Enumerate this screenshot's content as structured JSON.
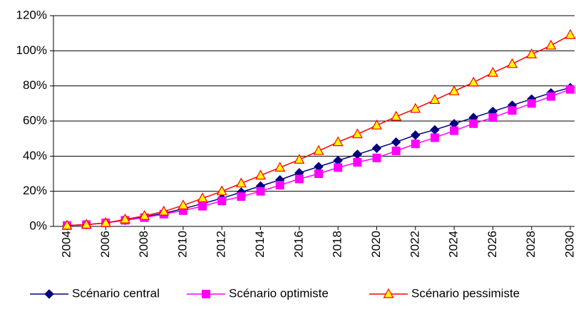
{
  "chart_data": {
    "type": "line",
    "x": [
      2004,
      2005,
      2006,
      2007,
      2008,
      2009,
      2010,
      2011,
      2012,
      2013,
      2014,
      2015,
      2016,
      2017,
      2018,
      2019,
      2020,
      2021,
      2022,
      2023,
      2024,
      2025,
      2026,
      2027,
      2028,
      2029,
      2030
    ],
    "xlim": [
      2004,
      2030
    ],
    "xticks": [
      2004,
      2006,
      2008,
      2010,
      2012,
      2014,
      2016,
      2018,
      2020,
      2022,
      2024,
      2026,
      2028,
      2030
    ],
    "ylim": [
      0,
      120
    ],
    "yticks": [
      {
        "value": 0,
        "label": "0%"
      },
      {
        "value": 20,
        "label": "20%"
      },
      {
        "value": 40,
        "label": "40%"
      },
      {
        "value": 60,
        "label": "60%"
      },
      {
        "value": 80,
        "label": "80%"
      },
      {
        "value": 100,
        "label": "100%"
      },
      {
        "value": 120,
        "label": "120%"
      }
    ],
    "grid": true,
    "legend": "bottom",
    "series": [
      {
        "name": "Scénario central",
        "color": "#000080",
        "marker": "diamond",
        "marker_fill": "#000080",
        "values": [
          0.5,
          1,
          2,
          3.5,
          5.5,
          7.5,
          10,
          13,
          16,
          19.5,
          23,
          26.5,
          30.5,
          34,
          37.5,
          41,
          44.5,
          48,
          52,
          55,
          58.5,
          62,
          65.5,
          69,
          72.5,
          76,
          79
        ]
      },
      {
        "name": "Scénario optimiste",
        "color": "#ff00ff",
        "marker": "square",
        "marker_fill": "#ff00ff",
        "values": [
          0.5,
          1,
          2,
          3.5,
          5,
          7,
          9,
          11.5,
          14.5,
          17,
          20,
          23.5,
          27,
          30,
          33.5,
          36.5,
          39,
          43,
          47,
          50.5,
          54.5,
          58.5,
          62,
          66,
          70,
          74,
          78
        ]
      },
      {
        "name": "Scénario pessimiste",
        "color": "#ff0000",
        "marker": "triangle",
        "marker_fill": "#ffff00",
        "values": [
          0.5,
          1,
          2,
          4,
          6,
          8.5,
          12,
          16,
          20,
          24.5,
          29,
          33.5,
          38,
          43,
          48,
          52.5,
          57.5,
          62.5,
          67,
          72,
          77,
          82,
          87.5,
          92.5,
          98,
          103,
          109
        ]
      }
    ]
  }
}
